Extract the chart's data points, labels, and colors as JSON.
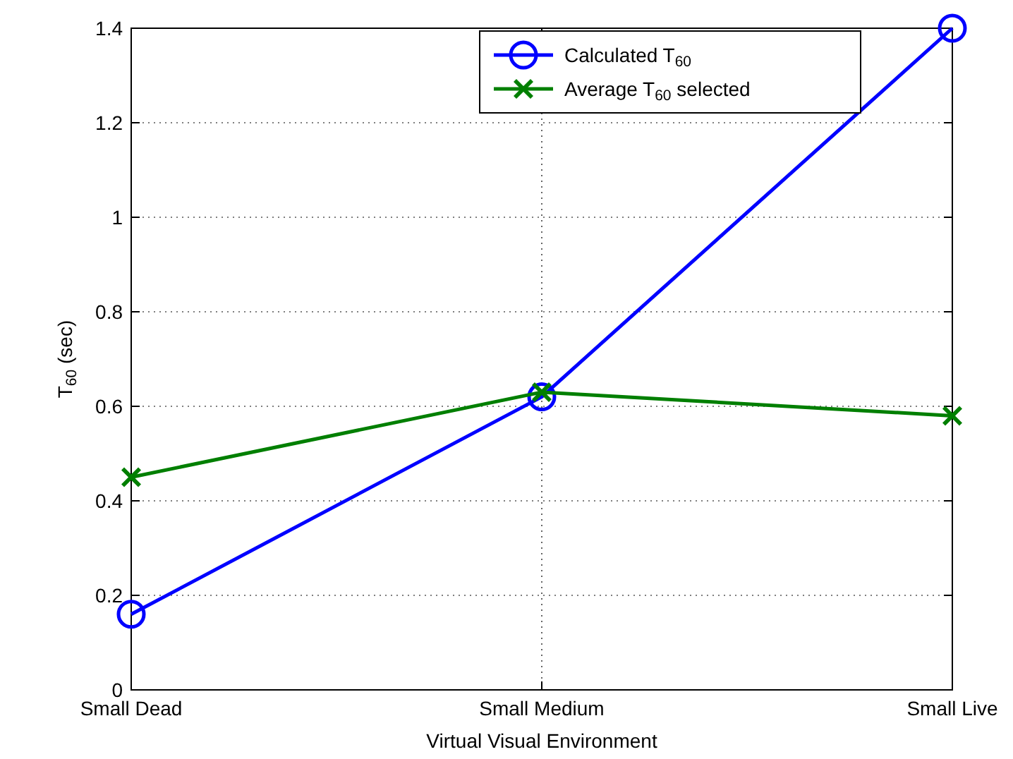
{
  "chart_data": {
    "type": "line",
    "xlabel": "Virtual Visual Environment",
    "ylabel": "T$_{60}$ (sec)",
    "categories": [
      "Small Dead",
      "Small Medium",
      "Small Live"
    ],
    "series": [
      {
        "name": "Calculated T$_{60}$",
        "color": "#0000ff",
        "marker": "circle",
        "values": [
          0.16,
          0.62,
          1.4
        ]
      },
      {
        "name": "Average T$_{60}$ selected",
        "color": "#007f00",
        "marker": "cross",
        "values": [
          0.45,
          0.63,
          0.58
        ]
      }
    ],
    "ylim": [
      0,
      1.4
    ],
    "yticks": [
      0,
      0.2,
      0.4,
      0.6,
      0.8,
      1,
      1.2,
      1.4
    ],
    "grid": true,
    "legend": "top right",
    "line_style": "solid"
  }
}
